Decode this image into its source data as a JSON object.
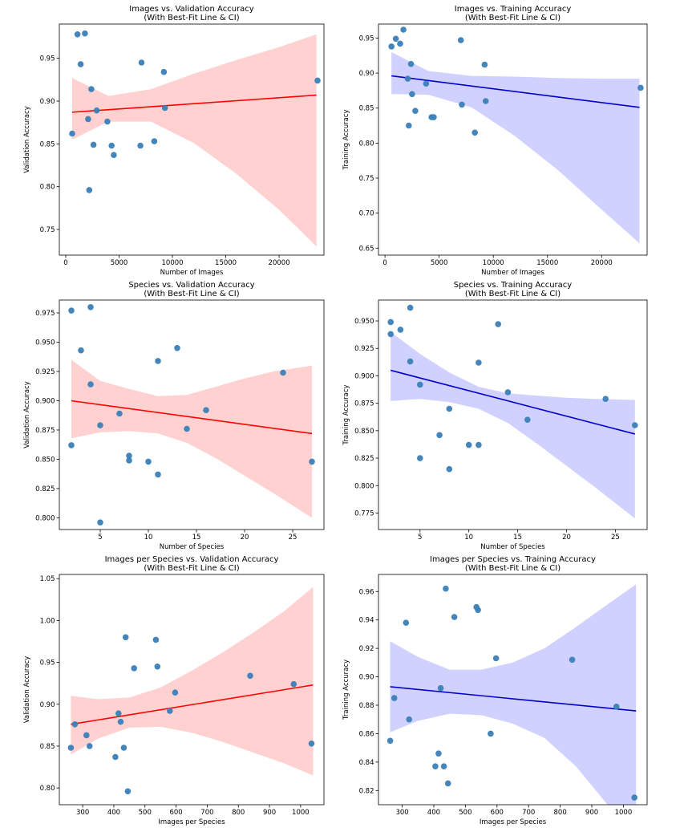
{
  "colors": {
    "point": "#3a80b8",
    "red_line": "#ff0000",
    "red_band": "#ffb3b3",
    "blue_line": "#0000cc",
    "blue_band": "#b3b3ff"
  },
  "chart_data": [
    {
      "type": "scatter",
      "title": [
        "Images vs. Validation Accuracy",
        "(With Best-Fit Line & CI)"
      ],
      "xlabel": "Number of Images",
      "ylabel": "Validation Accuracy",
      "xlim": [
        -600,
        24200
      ],
      "ylim": [
        0.72,
        0.99
      ],
      "xticks": [
        0,
        5000,
        10000,
        15000,
        20000
      ],
      "xtick_labels": [
        "0",
        "5000",
        "10000",
        "15000",
        "20000"
      ],
      "yticks": [
        0.75,
        0.8,
        0.85,
        0.9,
        0.95
      ],
      "ytick_labels": [
        "0.75",
        "0.80",
        "0.85",
        "0.90",
        "0.95"
      ],
      "accent": "red",
      "fit": {
        "x": [
          600,
          23500
        ],
        "y": [
          0.887,
          0.907
        ]
      },
      "ci": {
        "x": [
          600,
          4000,
          8000,
          12000,
          16000,
          20000,
          23500
        ],
        "lower": [
          0.855,
          0.876,
          0.876,
          0.851,
          0.815,
          0.773,
          0.73
        ],
        "upper": [
          0.927,
          0.906,
          0.914,
          0.932,
          0.948,
          0.963,
          0.978
        ]
      },
      "x": [
        600,
        1100,
        1400,
        1800,
        2100,
        2200,
        2400,
        2600,
        2900,
        3900,
        4300,
        4500,
        7000,
        7100,
        8300,
        9200,
        9300,
        23600
      ],
      "y": [
        0.862,
        0.978,
        0.943,
        0.979,
        0.879,
        0.796,
        0.914,
        0.849,
        0.889,
        0.876,
        0.848,
        0.837,
        0.848,
        0.945,
        0.853,
        0.934,
        0.892,
        0.924
      ]
    },
    {
      "type": "scatter",
      "title": [
        "Images vs. Training Accuracy",
        "(With Best-Fit Line & CI)"
      ],
      "xlabel": "Number of Images",
      "ylabel": "Training Accuracy",
      "xlim": [
        -600,
        24200
      ],
      "ylim": [
        0.64,
        0.97
      ],
      "xticks": [
        0,
        5000,
        10000,
        15000,
        20000
      ],
      "xtick_labels": [
        "0",
        "5000",
        "10000",
        "15000",
        "20000"
      ],
      "yticks": [
        0.65,
        0.7,
        0.75,
        0.8,
        0.85,
        0.9,
        0.95
      ],
      "ytick_labels": [
        "0.65",
        "0.70",
        "0.75",
        "0.80",
        "0.85",
        "0.90",
        "0.95"
      ],
      "accent": "blue",
      "fit": {
        "x": [
          600,
          23500
        ],
        "y": [
          0.896,
          0.851
        ]
      },
      "ci": {
        "x": [
          600,
          4000,
          8000,
          12000,
          16000,
          20000,
          23500
        ],
        "lower": [
          0.87,
          0.869,
          0.851,
          0.81,
          0.761,
          0.705,
          0.657
        ],
        "upper": [
          0.93,
          0.903,
          0.896,
          0.895,
          0.893,
          0.892,
          0.892
        ]
      },
      "x": [
        600,
        1000,
        1400,
        1700,
        2100,
        2200,
        2400,
        2500,
        2800,
        3800,
        4300,
        4500,
        7000,
        7100,
        8300,
        9200,
        9300,
        23600
      ],
      "y": [
        0.938,
        0.949,
        0.942,
        0.962,
        0.892,
        0.825,
        0.913,
        0.87,
        0.846,
        0.885,
        0.837,
        0.837,
        0.947,
        0.855,
        0.815,
        0.912,
        0.86,
        0.879
      ]
    },
    {
      "type": "scatter",
      "title": [
        "Species vs. Validation Accuracy",
        "(With Best-Fit Line & CI)"
      ],
      "xlabel": "Number of Species",
      "ylabel": "Validation Accuracy",
      "xlim": [
        0.75,
        28.25
      ],
      "ylim": [
        0.79,
        0.986
      ],
      "xticks": [
        5,
        10,
        15,
        20,
        25
      ],
      "xtick_labels": [
        "5",
        "10",
        "15",
        "20",
        "25"
      ],
      "yticks": [
        0.8,
        0.825,
        0.85,
        0.875,
        0.9,
        0.925,
        0.95,
        0.975
      ],
      "ytick_labels": [
        "0.800",
        "0.825",
        "0.850",
        "0.875",
        "0.900",
        "0.925",
        "0.950",
        "0.975"
      ],
      "accent": "red",
      "fit": {
        "x": [
          2,
          27
        ],
        "y": [
          0.9,
          0.872
        ]
      },
      "ci": {
        "x": [
          2,
          5,
          8,
          11,
          14,
          17,
          20,
          23,
          27
        ],
        "lower": [
          0.868,
          0.873,
          0.874,
          0.872,
          0.864,
          0.851,
          0.836,
          0.821,
          0.8
        ],
        "upper": [
          0.935,
          0.917,
          0.91,
          0.904,
          0.905,
          0.912,
          0.919,
          0.925,
          0.93
        ]
      },
      "x": [
        2,
        2,
        3,
        4,
        4,
        5,
        5,
        7,
        8,
        8,
        10,
        11,
        11,
        13,
        14,
        16,
        24,
        27
      ],
      "y": [
        0.977,
        0.862,
        0.943,
        0.98,
        0.914,
        0.879,
        0.796,
        0.889,
        0.853,
        0.849,
        0.848,
        0.837,
        0.934,
        0.945,
        0.876,
        0.892,
        0.924,
        0.848
      ]
    },
    {
      "type": "scatter",
      "title": [
        "Species vs. Training Accuracy",
        "(With Best-Fit Line & CI)"
      ],
      "xlabel": "Number of Species",
      "ylabel": "Training Accuracy",
      "xlim": [
        0.75,
        28.25
      ],
      "ylim": [
        0.76,
        0.969
      ],
      "xticks": [
        5,
        10,
        15,
        20,
        25
      ],
      "xtick_labels": [
        "5",
        "10",
        "15",
        "20",
        "25"
      ],
      "yticks": [
        0.775,
        0.8,
        0.825,
        0.85,
        0.875,
        0.9,
        0.925,
        0.95
      ],
      "ytick_labels": [
        "0.775",
        "0.800",
        "0.825",
        "0.850",
        "0.875",
        "0.900",
        "0.925",
        "0.950"
      ],
      "accent": "blue",
      "fit": {
        "x": [
          2,
          27
        ],
        "y": [
          0.905,
          0.847
        ]
      },
      "ci": {
        "x": [
          2,
          5,
          8,
          11,
          14,
          17,
          20,
          23,
          27
        ],
        "lower": [
          0.877,
          0.879,
          0.876,
          0.87,
          0.857,
          0.838,
          0.818,
          0.798,
          0.77
        ],
        "upper": [
          0.94,
          0.92,
          0.903,
          0.89,
          0.884,
          0.882,
          0.88,
          0.879,
          0.878
        ]
      },
      "x": [
        2,
        2,
        3,
        4,
        4,
        5,
        5,
        7,
        8,
        8,
        10,
        11,
        11,
        13,
        14,
        16,
        24,
        27
      ],
      "y": [
        0.949,
        0.938,
        0.942,
        0.962,
        0.913,
        0.892,
        0.825,
        0.846,
        0.87,
        0.815,
        0.837,
        0.837,
        0.912,
        0.947,
        0.885,
        0.86,
        0.879,
        0.855
      ]
    },
    {
      "type": "scatter",
      "title": [
        "Images per Species vs. Validation Accuracy",
        "(With Best-Fit Line & CI)"
      ],
      "xlabel": "Images per Species",
      "ylabel": "Validation Accuracy",
      "xlim": [
        225,
        1075
      ],
      "ylim": [
        0.78,
        1.055
      ],
      "xticks": [
        300,
        400,
        500,
        600,
        700,
        800,
        900,
        1000
      ],
      "xtick_labels": [
        "300",
        "400",
        "500",
        "600",
        "700",
        "800",
        "900",
        "1000"
      ],
      "yticks": [
        0.8,
        0.85,
        0.9,
        0.95,
        1.0,
        1.05
      ],
      "ytick_labels": [
        "0.80",
        "0.85",
        "0.90",
        "0.95",
        "1.00",
        "1.05"
      ],
      "accent": "red",
      "fit": {
        "x": [
          262,
          1040
        ],
        "y": [
          0.876,
          0.923
        ]
      },
      "ci": {
        "x": [
          262,
          350,
          450,
          550,
          650,
          750,
          850,
          950,
          1040
        ],
        "lower": [
          0.84,
          0.859,
          0.872,
          0.873,
          0.866,
          0.855,
          0.842,
          0.829,
          0.815
        ],
        "upper": [
          0.91,
          0.906,
          0.908,
          0.92,
          0.94,
          0.962,
          0.986,
          1.012,
          1.04
        ]
      },
      "x": [
        262,
        275,
        312,
        322,
        405,
        415,
        422,
        432,
        438,
        445,
        465,
        535,
        540,
        580,
        597,
        838,
        978,
        1035
      ],
      "y": [
        0.848,
        0.876,
        0.863,
        0.85,
        0.837,
        0.889,
        0.879,
        0.848,
        0.98,
        0.796,
        0.943,
        0.977,
        0.945,
        0.892,
        0.914,
        0.934,
        0.924,
        0.853
      ]
    },
    {
      "type": "scatter",
      "title": [
        "Images per Species vs. Training Accuracy",
        "(With Best-Fit Line & CI)"
      ],
      "xlabel": "Images per Species",
      "ylabel": "Training Accuracy",
      "xlim": [
        225,
        1075
      ],
      "ylim": [
        0.81,
        0.972
      ],
      "xticks": [
        300,
        400,
        500,
        600,
        700,
        800,
        900,
        1000
      ],
      "xtick_labels": [
        "300",
        "400",
        "500",
        "600",
        "700",
        "800",
        "900",
        "1000"
      ],
      "yticks": [
        0.82,
        0.84,
        0.86,
        0.88,
        0.9,
        0.92,
        0.94,
        0.96
      ],
      "ytick_labels": [
        "0.82",
        "0.84",
        "0.86",
        "0.88",
        "0.90",
        "0.92",
        "0.94",
        "0.96"
      ],
      "accent": "blue",
      "fit": {
        "x": [
          262,
          1040
        ],
        "y": [
          0.893,
          0.876
        ]
      },
      "ci": {
        "x": [
          262,
          350,
          450,
          550,
          650,
          750,
          850,
          950,
          1040
        ],
        "lower": [
          0.861,
          0.869,
          0.874,
          0.873,
          0.867,
          0.857,
          0.837,
          0.81,
          0.786
        ],
        "upper": [
          0.925,
          0.914,
          0.905,
          0.905,
          0.91,
          0.92,
          0.935,
          0.951,
          0.965
        ]
      },
      "x": [
        262,
        275,
        312,
        322,
        405,
        415,
        422,
        432,
        438,
        445,
        465,
        535,
        540,
        580,
        597,
        838,
        978,
        1035
      ],
      "y": [
        0.855,
        0.885,
        0.938,
        0.87,
        0.837,
        0.846,
        0.892,
        0.837,
        0.962,
        0.825,
        0.942,
        0.949,
        0.947,
        0.86,
        0.913,
        0.912,
        0.879,
        0.815
      ]
    }
  ]
}
